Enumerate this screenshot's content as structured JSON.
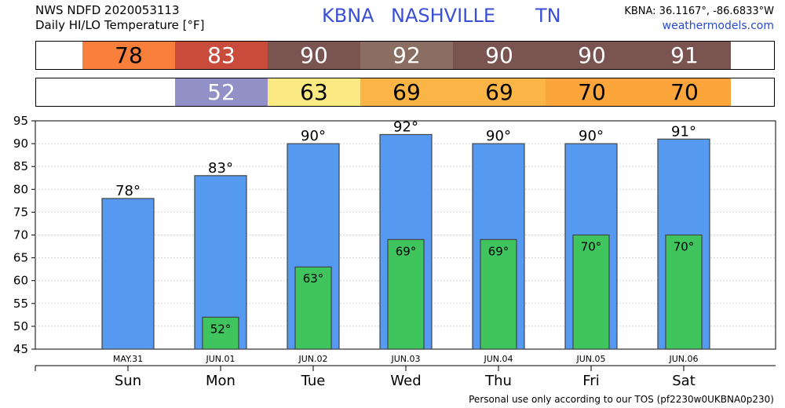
{
  "header": {
    "source": "NWS NDFD 2020053113",
    "product": "Daily HI/LO Temperature [°F]",
    "station": "KBNA",
    "city": "NASHVILLE",
    "state": "TN",
    "coords": "KBNA: 36.1167°, -86.6833°W",
    "site": "weathermodels.com"
  },
  "footer": {
    "tos": "Personal use only according to our TOS (pf2230w0UKBNA0p230)"
  },
  "strips": {
    "hi": [
      {
        "text": "78",
        "color": "#f77f3b",
        "fg": "#000000"
      },
      {
        "text": "83",
        "color": "#c84b3c",
        "fg": "#ffffff"
      },
      {
        "text": "90",
        "color": "#7a5450",
        "fg": "#ffffff"
      },
      {
        "text": "92",
        "color": "#8a6e62",
        "fg": "#ffffff"
      },
      {
        "text": "90",
        "color": "#7a5450",
        "fg": "#ffffff"
      },
      {
        "text": "90",
        "color": "#7a5450",
        "fg": "#ffffff"
      },
      {
        "text": "91",
        "color": "#7a5450",
        "fg": "#ffffff"
      }
    ],
    "lo": [
      {
        "text": "",
        "color": "#ffffff",
        "fg": "#000000"
      },
      {
        "text": "52",
        "color": "#9191c8",
        "fg": "#ffffff"
      },
      {
        "text": "63",
        "color": "#fbe983",
        "fg": "#000000"
      },
      {
        "text": "69",
        "color": "#fbb446",
        "fg": "#000000"
      },
      {
        "text": "69",
        "color": "#fbb446",
        "fg": "#000000"
      },
      {
        "text": "70",
        "color": "#fba53a",
        "fg": "#000000"
      },
      {
        "text": "70",
        "color": "#fba53a",
        "fg": "#000000"
      }
    ]
  },
  "chart_data": {
    "type": "bar",
    "categories": [
      "Sun",
      "Mon",
      "Tue",
      "Wed",
      "Thu",
      "Fri",
      "Sat"
    ],
    "dates": [
      "MAY.31",
      "JUN.01",
      "JUN.02",
      "JUN.03",
      "JUN.04",
      "JUN.05",
      "JUN.06"
    ],
    "series": [
      {
        "values": [
          78,
          83,
          90,
          92,
          90,
          90,
          91
        ],
        "color": "#5699f0"
      },
      {
        "values": [
          null,
          52,
          63,
          69,
          69,
          70,
          70
        ],
        "color": "#3fc45e"
      }
    ],
    "hi_labels": [
      "78°",
      "83°",
      "90°",
      "92°",
      "90°",
      "90°",
      "91°"
    ],
    "lo_labels": [
      "",
      "52°",
      "63°",
      "69°",
      "69°",
      "70°",
      "70°"
    ],
    "yticks": [
      "45",
      "50",
      "55",
      "60",
      "65",
      "70",
      "75",
      "80",
      "85",
      "90",
      "95"
    ],
    "ylim": [
      45,
      95
    ],
    "grid": true
  }
}
